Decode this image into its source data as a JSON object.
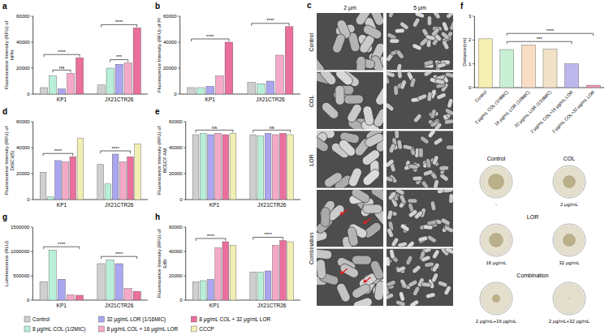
{
  "chart_data": [
    {
      "type": "bar",
      "panel": "a",
      "y_label": "Fluorescence Intensity (RFU) of NPN",
      "categories": [
        "KP1",
        "JX21CTR26"
      ],
      "ylim": [
        0,
        60000
      ],
      "yticks": [
        0,
        20000,
        40000,
        60000
      ],
      "series": [
        {
          "name": "Control",
          "color": "#cfcfcf",
          "values": [
            5000,
            7000
          ]
        },
        {
          "name": "8 μg/mL COL (1/2MIC)",
          "color": "#b9efd9",
          "values": [
            14000,
            20000
          ]
        },
        {
          "name": "32 μg/mL LOR (1/16MIC)",
          "color": "#aaa6ef",
          "values": [
            4000,
            23000
          ]
        },
        {
          "name": "8 μg/mL COL + 16 μg/mL LOR",
          "color": "#f5a9c9",
          "values": [
            16000,
            24000
          ]
        },
        {
          "name": "8 μg/mL COL + 32 μg/mL LOR",
          "color": "#ea6f9c",
          "values": [
            28000,
            51000
          ]
        }
      ],
      "annotations": [
        {
          "group": 0,
          "from": 1,
          "to": 3,
          "text": "ns"
        },
        {
          "group": 0,
          "from": 0,
          "to": 4,
          "text": "****"
        },
        {
          "group": 1,
          "from": 1,
          "to": 3,
          "text": "***"
        },
        {
          "group": 1,
          "from": 0,
          "to": 4,
          "text": "****"
        }
      ]
    },
    {
      "type": "bar",
      "panel": "b",
      "y_label": "Fluorescence Intensity (RFU) of PI",
      "categories": [
        "KP1",
        "JX21CTR26"
      ],
      "ylim": [
        0,
        60000
      ],
      "yticks": [
        0,
        20000,
        40000,
        60000
      ],
      "series": [
        {
          "name": "Control",
          "color": "#cfcfcf",
          "values": [
            5000,
            9000
          ]
        },
        {
          "name": "8 μg/mL COL (1/2MIC)",
          "color": "#b9efd9",
          "values": [
            5000,
            8000
          ]
        },
        {
          "name": "32 μg/mL LOR (1/16MIC)",
          "color": "#aaa6ef",
          "values": [
            6000,
            10000
          ]
        },
        {
          "name": "8 μg/mL COL + 16 μg/mL LOR",
          "color": "#f5a9c9",
          "values": [
            14000,
            30000
          ]
        },
        {
          "name": "8 μg/mL COL + 32 μg/mL LOR",
          "color": "#ea6f9c",
          "values": [
            40000,
            52000
          ]
        }
      ],
      "annotations": [
        {
          "group": 0,
          "from": 0,
          "to": 4,
          "text": "****"
        },
        {
          "group": 1,
          "from": 0,
          "to": 4,
          "text": "****"
        }
      ]
    },
    {
      "type": "bar",
      "panel": "d",
      "y_label": "Fluorescence Intensity (RFU) of DiSC3(5)",
      "categories": [
        "KP1",
        "JX21CTR26"
      ],
      "ylim": [
        0,
        60000
      ],
      "yticks": [
        0,
        20000,
        40000,
        60000
      ],
      "legend": "bottom",
      "series": [
        {
          "name": "Control",
          "color": "#cfcfcf",
          "values": [
            21000,
            27000
          ]
        },
        {
          "name": "8 μg/mL COL (1/2MIC)",
          "color": "#b9efd9",
          "values": [
            2000,
            12000
          ]
        },
        {
          "name": "32 μg/mL LOR (1/16MIC)",
          "color": "#aaa6ef",
          "values": [
            30000,
            35000
          ]
        },
        {
          "name": "8 μg/mL COL + 16 μg/mL LOR",
          "color": "#f5a9c9",
          "values": [
            29000,
            29000
          ]
        },
        {
          "name": "8 μg/mL COL + 32 μg/mL LOR",
          "color": "#ea6f9c",
          "values": [
            33000,
            33000
          ]
        },
        {
          "name": "CCCP",
          "color": "#f2efb5",
          "values": [
            47000,
            43000
          ]
        }
      ],
      "annotations": [
        {
          "group": 0,
          "from": 0,
          "to": 4,
          "text": "****"
        },
        {
          "group": 1,
          "from": 0,
          "to": 4,
          "text": "****"
        }
      ]
    },
    {
      "type": "bar",
      "panel": "e",
      "y_label": "Fluorescence Intensity (RFU) of BCECF AM",
      "categories": [
        "KP1",
        "JX21CTR26"
      ],
      "ylim": [
        0,
        60000
      ],
      "yticks": [
        0,
        20000,
        40000,
        60000
      ],
      "series": [
        {
          "name": "Control",
          "color": "#cfcfcf",
          "values": [
            50000,
            50000
          ]
        },
        {
          "name": "8 μg/mL COL (1/2MIC)",
          "color": "#b9efd9",
          "values": [
            51000,
            49000
          ]
        },
        {
          "name": "32 μg/mL LOR (1/16MIC)",
          "color": "#aaa6ef",
          "values": [
            50000,
            51000
          ]
        },
        {
          "name": "8 μg/mL COL + 16 μg/mL LOR",
          "color": "#f5a9c9",
          "values": [
            51000,
            50000
          ]
        },
        {
          "name": "8 μg/mL COL + 32 μg/mL LOR",
          "color": "#ea6f9c",
          "values": [
            50000,
            51000
          ]
        },
        {
          "name": "CCCP",
          "color": "#f2efb5",
          "values": [
            51000,
            50000
          ]
        }
      ],
      "annotations": [
        {
          "group": 0,
          "from": 0,
          "to": 5,
          "text": "ns"
        },
        {
          "group": 1,
          "from": 0,
          "to": 5,
          "text": "ns"
        }
      ]
    },
    {
      "type": "bar",
      "panel": "g",
      "y_label": "Luminescence (RLU)",
      "categories": [
        "KP1",
        "JX21CTR26"
      ],
      "ylim": [
        0,
        1500000
      ],
      "yticks": [
        0,
        500000,
        1000000,
        1500000
      ],
      "series": [
        {
          "name": "Control",
          "color": "#cfcfcf",
          "values": [
            380000,
            750000
          ]
        },
        {
          "name": "8 μg/mL COL (1/2MIC)",
          "color": "#b9efd9",
          "values": [
            1030000,
            830000
          ]
        },
        {
          "name": "32 μg/mL LOR (1/16MIC)",
          "color": "#aaa6ef",
          "values": [
            430000,
            750000
          ]
        },
        {
          "name": "8 μg/mL COL + 16 μg/mL LOR",
          "color": "#f5a9c9",
          "values": [
            110000,
            240000
          ]
        },
        {
          "name": "8 μg/mL COL + 32 μg/mL LOR",
          "color": "#ea6f9c",
          "values": [
            100000,
            180000
          ]
        }
      ],
      "annotations": [
        {
          "group": 0,
          "from": 0,
          "to": 4,
          "text": "****"
        },
        {
          "group": 1,
          "from": 0,
          "to": 4,
          "text": "****"
        }
      ]
    },
    {
      "type": "bar",
      "panel": "h",
      "y_label": "Fluorescence Intensity (RFU) of EtBr",
      "categories": [
        "KP1",
        "JX21CTR26"
      ],
      "ylim": [
        0,
        60000
      ],
      "yticks": [
        0,
        20000,
        40000,
        60000
      ],
      "series": [
        {
          "name": "Control",
          "color": "#cfcfcf",
          "values": [
            15000,
            23000
          ]
        },
        {
          "name": "8 μg/mL COL (1/2MIC)",
          "color": "#b9efd9",
          "values": [
            16000,
            23000
          ]
        },
        {
          "name": "32 μg/mL LOR (1/16MIC)",
          "color": "#aaa6ef",
          "values": [
            17000,
            24000
          ]
        },
        {
          "name": "8 μg/mL COL + 16 μg/mL LOR",
          "color": "#f5a9c9",
          "values": [
            43000,
            45000
          ]
        },
        {
          "name": "8 μg/mL COL + 32 μg/mL LOR",
          "color": "#ea6f9c",
          "values": [
            48000,
            49000
          ]
        },
        {
          "name": "CCCP",
          "color": "#f2efb5",
          "values": [
            45000,
            48000
          ]
        }
      ],
      "annotations": [
        {
          "group": 0,
          "from": 0,
          "to": 4,
          "text": "****"
        },
        {
          "group": 1,
          "from": 0,
          "to": 4,
          "text": "****"
        }
      ]
    },
    {
      "type": "bar",
      "panel": "f",
      "y_label": "Distance(cm)",
      "categories": [
        "Control",
        "2 μg/mL COL (1/4MIC)",
        "16 μg/mL LOR (1/8MIC)",
        "32 μg/mL LOR (1/16MIC)",
        "2 μg/mL COL+16 μg/mL LOR",
        "2 μg/mL COL+32 μg/mL LOR"
      ],
      "values": [
        2.05,
        1.6,
        1.8,
        1.62,
        1.0,
        0.1
      ],
      "colors": [
        "#f6f0b4",
        "#c8efd4",
        "#f9dcc4",
        "#f2e2c8",
        "#bdb7ee",
        "#f29ab9"
      ],
      "ylim": [
        0,
        3
      ],
      "yticks": [
        0,
        1,
        2,
        3
      ],
      "annotations": [
        {
          "from": 1,
          "to": 4,
          "text": "***"
        },
        {
          "from": 1,
          "to": 5,
          "text": "****"
        }
      ]
    }
  ],
  "images": {
    "panel": "c",
    "columns": [
      "2 μm",
      "5 μm"
    ],
    "rows": [
      {
        "label": "Control",
        "images": 1
      },
      {
        "label": "COL",
        "images": 1
      },
      {
        "label": "LOR",
        "images": 1
      },
      {
        "label": "Combination",
        "images": 2
      }
    ]
  },
  "dishes": {
    "groups": [
      {
        "label": "Control",
        "items": [
          "-"
        ]
      },
      {
        "label": "COL",
        "items": [
          "2 μg/mL"
        ]
      },
      {
        "label": "LOR",
        "items": [
          "16 μg/mL",
          "32 μg/mL"
        ]
      },
      {
        "label": "Combination",
        "items": [
          "2 μg/mL+16 μg/mL",
          "2 μg/mL+32 μg/mL"
        ]
      }
    ]
  }
}
